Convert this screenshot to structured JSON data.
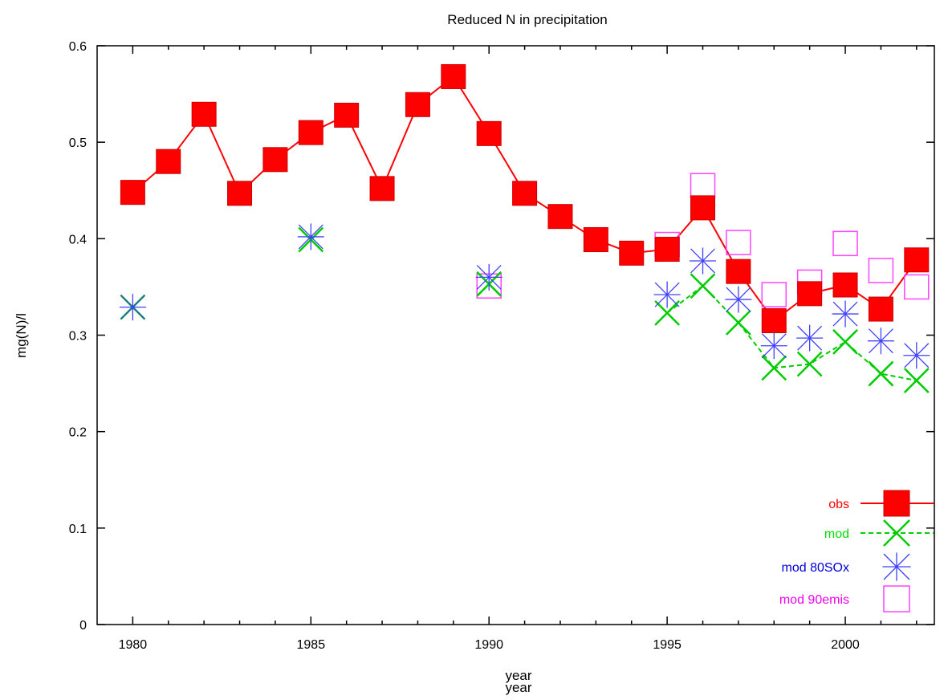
{
  "chart_data": {
    "type": "line",
    "title": "Reduced N in precipitation",
    "xlabel": "year",
    "xlabel_repeat": "year",
    "ylabel": "mg(N)/l",
    "xlim": [
      1979,
      2002.5
    ],
    "ylim": [
      0,
      0.6
    ],
    "xticks": [
      1980,
      1985,
      1990,
      1995,
      2000
    ],
    "yticks": [
      0,
      0.1,
      0.2,
      0.3,
      0.4,
      0.5,
      0.6
    ],
    "ytick_labels": [
      "0",
      "0.1",
      "0.2",
      "0.3",
      "0.4",
      "0.5",
      "0.6"
    ],
    "grid": false,
    "legend": "bottom-right",
    "colors": {
      "obs": "#ff0000",
      "mod": "#00cc00",
      "mod80": "#4040ff",
      "mod90": "#ff44ff",
      "mod80_label": "#0000dd",
      "mod90_label": "#ee00ee",
      "mod_label": "#00dd00"
    },
    "series": [
      {
        "name": "obs",
        "marker": "filled-square",
        "line": "solid",
        "x": [
          1980,
          1981,
          1982,
          1983,
          1984,
          1985,
          1986,
          1987,
          1988,
          1989,
          1990,
          1991,
          1992,
          1993,
          1994,
          1995,
          1996,
          1997,
          1998,
          1999,
          2000,
          2001,
          2002
        ],
        "y": [
          0.448,
          0.48,
          0.529,
          0.447,
          0.482,
          0.51,
          0.528,
          0.452,
          0.539,
          0.568,
          0.509,
          0.447,
          0.423,
          0.399,
          0.385,
          0.389,
          0.432,
          0.366,
          0.315,
          0.343,
          0.352,
          0.327,
          0.378
        ]
      },
      {
        "name": "mod",
        "marker": "x",
        "line": "dashed",
        "x": [
          1980,
          1985,
          1990,
          1995,
          1996,
          1997,
          1998,
          1999,
          2000,
          2001,
          2002
        ],
        "y": [
          0.329,
          0.399,
          0.353,
          0.323,
          0.351,
          0.313,
          0.266,
          0.27,
          0.293,
          0.26,
          0.253
        ]
      },
      {
        "name": "mod 80SOx",
        "marker": "star",
        "line": "none",
        "x": [
          1980,
          1985,
          1990,
          1995,
          1996,
          1997,
          1998,
          1999,
          2000,
          2001,
          2002
        ],
        "y": [
          0.329,
          0.402,
          0.36,
          0.342,
          0.377,
          0.337,
          0.289,
          0.297,
          0.322,
          0.294,
          0.279
        ]
      },
      {
        "name": "mod 90emis",
        "marker": "open-square",
        "line": "none",
        "x": [
          1990,
          1995,
          1996,
          1997,
          1998,
          1999,
          2000,
          2001,
          2002
        ],
        "y": [
          0.351,
          0.394,
          0.455,
          0.396,
          0.342,
          0.355,
          0.395,
          0.367,
          0.35
        ]
      }
    ]
  }
}
